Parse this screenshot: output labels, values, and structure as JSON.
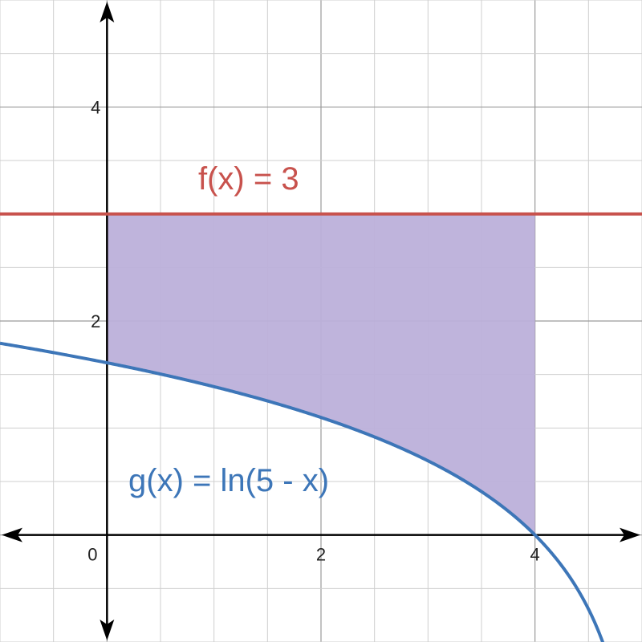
{
  "chart_data": {
    "type": "area",
    "xlim": [
      -1,
      5
    ],
    "ylim": [
      -1,
      5
    ],
    "grid": true,
    "grid_minor_step": 0.5,
    "grid_major_step": 2,
    "x_tick_labels": [
      {
        "value": 0,
        "label": "0"
      },
      {
        "value": 2,
        "label": "2"
      },
      {
        "value": 4,
        "label": "4"
      }
    ],
    "y_tick_labels": [
      {
        "value": 2,
        "label": "2"
      },
      {
        "value": 4,
        "label": "4"
      }
    ],
    "series": [
      {
        "name": "f(x) = 3",
        "expression": "3",
        "color": "#c8524d"
      },
      {
        "name": "g(x) = ln(5 - x)",
        "expression": "ln(5 - x)",
        "color": "#3d76b8"
      }
    ],
    "shaded_region": {
      "between": [
        "f(x) = 3",
        "g(x) = ln(5 - x)"
      ],
      "x_from": 0,
      "x_to": 4,
      "color": "#bcb0da"
    }
  }
}
